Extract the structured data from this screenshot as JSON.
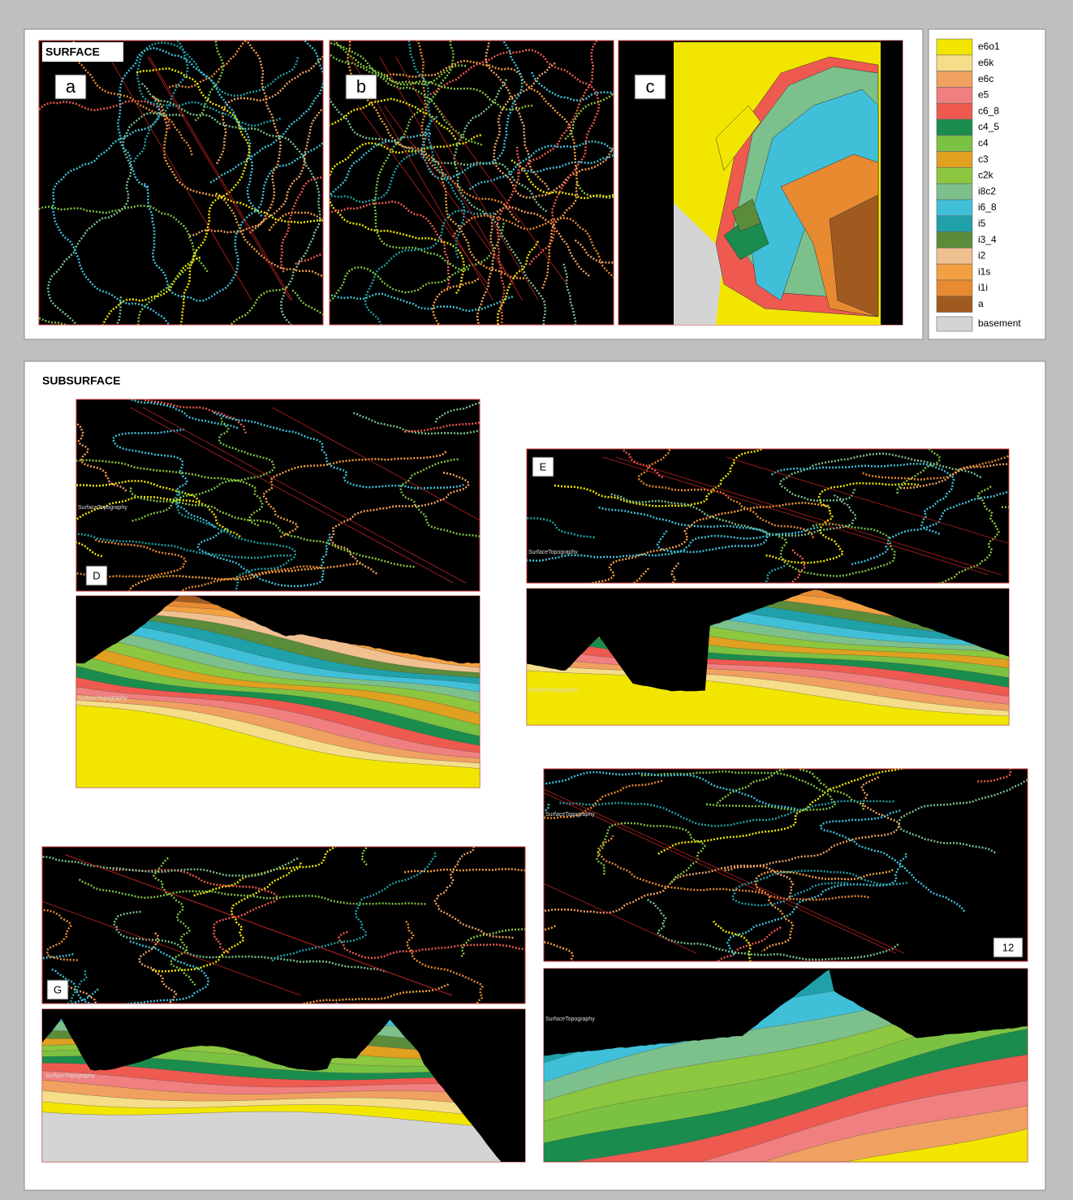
{
  "surface": {
    "title": "SURFACE",
    "panels": [
      "a",
      "b",
      "c"
    ]
  },
  "legend": [
    {
      "label": "e6o1",
      "color": "#f2e600"
    },
    {
      "label": "e6k",
      "color": "#f5dd8a"
    },
    {
      "label": "e6c",
      "color": "#f0a060"
    },
    {
      "label": "e5",
      "color": "#f08080"
    },
    {
      "label": "c6_8",
      "color": "#ee5a50"
    },
    {
      "label": "c4_5",
      "color": "#1a8c4e"
    },
    {
      "label": "c4",
      "color": "#7cc242"
    },
    {
      "label": "c3",
      "color": "#e0a020"
    },
    {
      "label": "c2k",
      "color": "#8dc63f"
    },
    {
      "label": "i8c2",
      "color": "#7cc08c"
    },
    {
      "label": "i6_8",
      "color": "#40c0d8"
    },
    {
      "label": "i5",
      "color": "#20a0a8"
    },
    {
      "label": "i3_4",
      "color": "#5a8c3a"
    },
    {
      "label": "i2",
      "color": "#f0c090"
    },
    {
      "label": "i1s",
      "color": "#f5a040"
    },
    {
      "label": "i1i",
      "color": "#e88a30"
    },
    {
      "label": "a",
      "color": "#a05a20"
    },
    {
      "label": "basement",
      "color": "#d4d4d4"
    }
  ],
  "subsurface": {
    "title": "SUBSURFACE",
    "sections": [
      {
        "label": "D",
        "topography_label": "SurfaceTopography"
      },
      {
        "label": "E",
        "topography_label": "SurfaceTopography"
      },
      {
        "label": "G",
        "topography_label": "SurfaceTopography"
      },
      {
        "label": "12",
        "topography_label": "SurfaceTopography"
      }
    ]
  }
}
